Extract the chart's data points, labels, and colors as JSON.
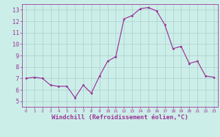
{
  "x": [
    0,
    1,
    2,
    3,
    4,
    5,
    6,
    7,
    8,
    9,
    10,
    11,
    12,
    13,
    14,
    15,
    16,
    17,
    18,
    19,
    20,
    21,
    22,
    23
  ],
  "y": [
    7.0,
    7.1,
    7.0,
    6.4,
    6.3,
    6.3,
    5.3,
    6.4,
    5.7,
    7.2,
    8.5,
    8.9,
    12.2,
    12.5,
    13.1,
    13.2,
    12.9,
    11.7,
    9.6,
    9.8,
    8.3,
    8.5,
    7.2,
    7.1
  ],
  "line_color": "#993399",
  "marker": "s",
  "marker_size": 1.8,
  "bg_color": "#cceee8",
  "grid_color": "#aacccc",
  "xlabel": "Windchill (Refroidissement éolien,°C)",
  "xlim": [
    -0.5,
    23.5
  ],
  "ylim": [
    4.5,
    13.5
  ],
  "yticks": [
    5,
    6,
    7,
    8,
    9,
    10,
    11,
    12,
    13
  ],
  "xticks": [
    0,
    1,
    2,
    3,
    4,
    5,
    6,
    7,
    8,
    9,
    10,
    11,
    12,
    13,
    14,
    15,
    16,
    17,
    18,
    19,
    20,
    21,
    22,
    23
  ],
  "xlabel_fontsize": 6.5,
  "tick_fontsize": 6.0,
  "label_color": "#993399",
  "axis_color": "#993399"
}
